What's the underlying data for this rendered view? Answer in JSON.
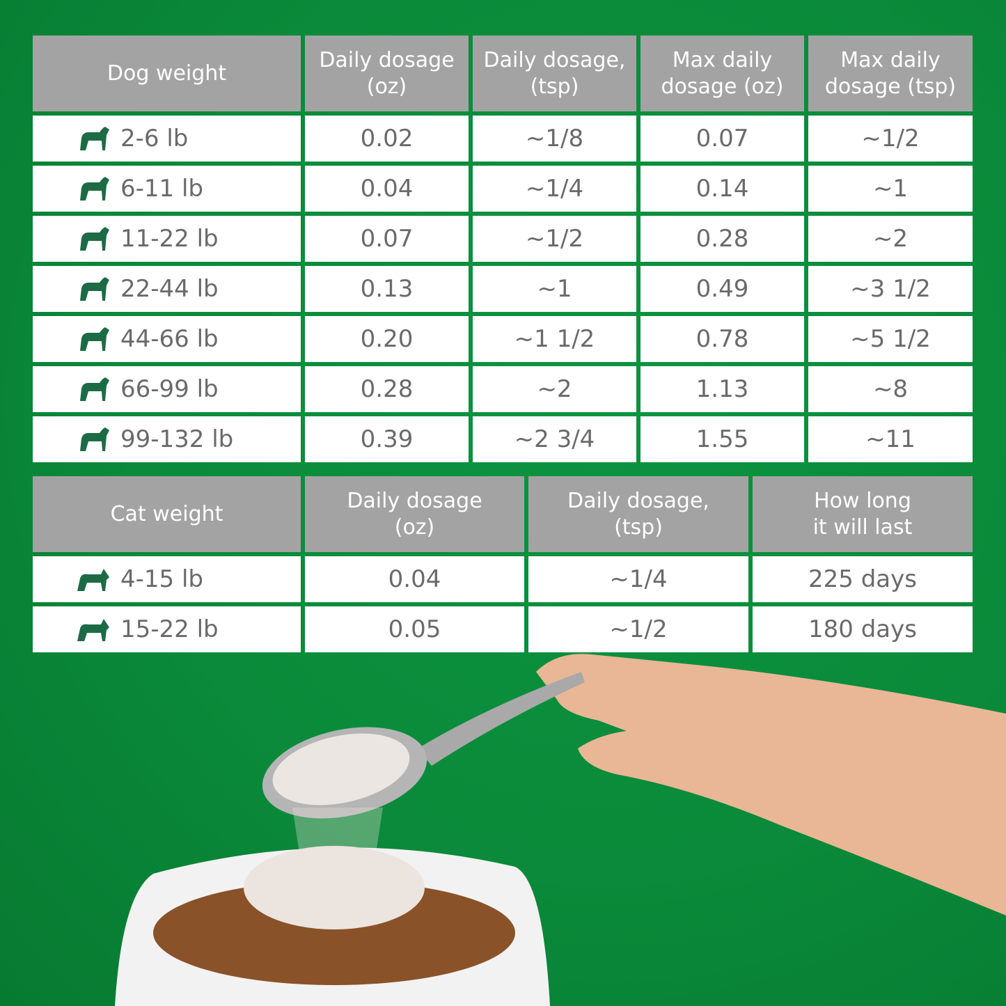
{
  "colors": {
    "background": "#0a8a3a",
    "header": "#a3a3a3",
    "icon": "#1d6b45",
    "text": "#6a6a6a"
  },
  "dog_table": {
    "headers": [
      "Dog weight",
      "Daily dosage\n(oz)",
      "Daily dosage,\n(tsp)",
      "Max daily\ndosage (oz)",
      "Max daily\ndosage (tsp)"
    ],
    "rows": [
      {
        "icon": "chihuahua-icon",
        "weight": "2-6 lb",
        "daily_oz": "0.02",
        "daily_tsp": "~1/8",
        "max_oz": "0.07",
        "max_tsp": "~1/2"
      },
      {
        "icon": "pomeranian-icon",
        "weight": "6-11 lb",
        "daily_oz": "0.04",
        "daily_tsp": "~1/4",
        "max_oz": "0.14",
        "max_tsp": "~1"
      },
      {
        "icon": "terrier-icon",
        "weight": "11-22 lb",
        "daily_oz": "0.07",
        "daily_tsp": "~1/2",
        "max_oz": "0.28",
        "max_tsp": "~2"
      },
      {
        "icon": "spaniel-icon",
        "weight": "22-44 lb",
        "daily_oz": "0.13",
        "daily_tsp": "~1",
        "max_oz": "0.49",
        "max_tsp": "~3 1/2"
      },
      {
        "icon": "chow-icon",
        "weight": "44-66 lb",
        "daily_oz": "0.20",
        "daily_tsp": "~1 1/2",
        "max_oz": "0.78",
        "max_tsp": "~5 1/2"
      },
      {
        "icon": "doberman-icon",
        "weight": "66-99 lb",
        "daily_oz": "0.28",
        "daily_tsp": "~2",
        "max_oz": "1.13",
        "max_tsp": "~8"
      },
      {
        "icon": "akita-icon",
        "weight": "99-132 lb",
        "daily_oz": "0.39",
        "daily_tsp": "~2 3/4",
        "max_oz": "1.55",
        "max_tsp": "~11"
      }
    ]
  },
  "cat_table": {
    "headers": [
      "Cat weight",
      "Daily dosage\n(oz)",
      "Daily dosage,\n(tsp)",
      "How long\nit will last"
    ],
    "rows": [
      {
        "icon": "small-cat-icon",
        "weight": "4-15 lb",
        "daily_oz": "0.04",
        "daily_tsp": "~1/4",
        "duration": "225 days"
      },
      {
        "icon": "large-cat-icon",
        "weight": "15-22 lb",
        "daily_oz": "0.05",
        "daily_tsp": "~1/2",
        "duration": "180 days"
      }
    ]
  }
}
